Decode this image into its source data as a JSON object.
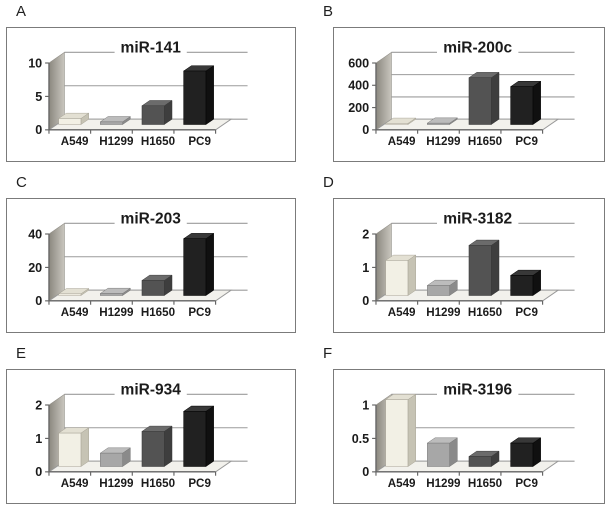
{
  "figure": {
    "background": "#ffffff",
    "categories": [
      "A549",
      "H1299",
      "H1650",
      "PC9"
    ]
  },
  "style": {
    "text_color": "#1b1b1b",
    "gridline_color": "#9c9c9c",
    "axis_color": "#666666",
    "wall_gradient": [
      "#8b887f",
      "#c9c6be"
    ],
    "wall_stroke": "#94918a",
    "floor_fill": "#f2f1ec",
    "floor_stroke": "#999999",
    "bar_colors": [
      {
        "name": "A549",
        "front": "#f2f0e5",
        "top": "#e3e0d3",
        "side": "#c6c3b4",
        "stroke": "#a6a295"
      },
      {
        "name": "H1299",
        "front": "#a7a7a7",
        "top": "#bcbcbc",
        "side": "#8a8a8a",
        "stroke": "#787878"
      },
      {
        "name": "H1650",
        "front": "#535353",
        "top": "#6b6b6b",
        "side": "#3e3e3e",
        "stroke": "#383838"
      },
      {
        "name": "PC9",
        "front": "#212121",
        "top": "#383838",
        "side": "#101010",
        "stroke": "#000000"
      }
    ]
  },
  "chart_data": [
    {
      "type": "bar",
      "panel": "A",
      "letter": "A",
      "title": "miR-141",
      "categories": [
        "A549",
        "H1299",
        "H1650",
        "PC9"
      ],
      "ticks": [
        "0",
        "5",
        "10"
      ],
      "ylim": [
        0,
        10
      ],
      "values": [
        0.9,
        0.4,
        2.8,
        8.0
      ],
      "xlabel": "",
      "ylabel": "",
      "grid": true,
      "legend": "none"
    },
    {
      "type": "bar",
      "panel": "B",
      "letter": "B",
      "title": "miR-200c",
      "categories": [
        "A549",
        "H1299",
        "H1650",
        "PC9"
      ],
      "ticks": [
        "0",
        "200",
        "400",
        "600"
      ],
      "ylim": [
        0,
        600
      ],
      "values": [
        10,
        12,
        420,
        340
      ],
      "xlabel": "",
      "ylabel": "",
      "grid": true,
      "legend": "none"
    },
    {
      "type": "bar",
      "panel": "C",
      "letter": "C",
      "title": "miR-203",
      "categories": [
        "A549",
        "H1299",
        "H1650",
        "PC9"
      ],
      "ticks": [
        "0",
        "20",
        "40"
      ],
      "ylim": [
        0,
        40
      ],
      "values": [
        1.0,
        1.2,
        9,
        34
      ],
      "xlabel": "",
      "ylabel": "",
      "grid": true,
      "legend": "none"
    },
    {
      "type": "bar",
      "panel": "D",
      "letter": "D",
      "title": "miR-3182",
      "categories": [
        "A549",
        "H1299",
        "H1650",
        "PC9"
      ],
      "ticks": [
        "0",
        "1",
        "2"
      ],
      "ylim": [
        0,
        2
      ],
      "values": [
        1.05,
        0.3,
        1.5,
        0.6
      ],
      "xlabel": "",
      "ylabel": "",
      "grid": true,
      "legend": "none"
    },
    {
      "type": "bar",
      "panel": "E",
      "letter": "E",
      "title": "miR-934",
      "categories": [
        "A549",
        "H1299",
        "H1650",
        "PC9"
      ],
      "ticks": [
        "0",
        "1",
        "2"
      ],
      "ylim": [
        0,
        2
      ],
      "values": [
        1.0,
        0.4,
        1.05,
        1.65
      ],
      "xlabel": "",
      "ylabel": "",
      "grid": true,
      "legend": "none"
    },
    {
      "type": "bar",
      "panel": "F",
      "letter": "F",
      "title": "miR-3196",
      "categories": [
        "A549",
        "H1299",
        "H1650",
        "PC9"
      ],
      "ticks": [
        "0",
        "0.5",
        "1"
      ],
      "ylim": [
        0,
        1
      ],
      "values": [
        1.0,
        0.35,
        0.15,
        0.35
      ],
      "xlabel": "",
      "ylabel": "",
      "grid": true,
      "legend": "none"
    }
  ]
}
